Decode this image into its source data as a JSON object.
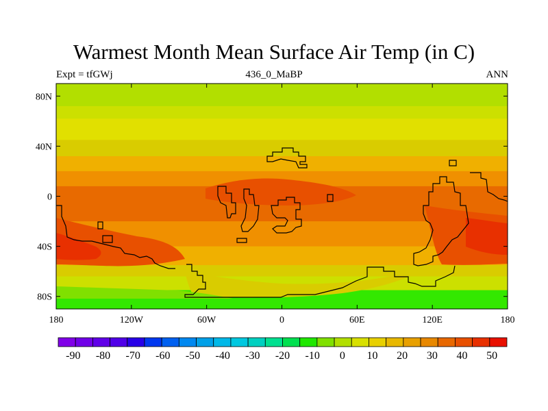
{
  "title": "Warmest Month Mean Surface Air Temp (in C)",
  "subtitle_left": "Expt = tfGWj",
  "subtitle_center": "436_0_MaBP",
  "subtitle_right": "ANN",
  "map": {
    "lat_range": [
      -90,
      90
    ],
    "lon_range": [
      -180,
      180
    ],
    "y_ticks": [
      "80N",
      "40N",
      "0",
      "40S",
      "80S"
    ],
    "y_tick_values": [
      80,
      40,
      0,
      -40,
      -80
    ],
    "x_ticks": [
      "180",
      "120W",
      "60W",
      "0",
      "60E",
      "120E",
      "180"
    ],
    "x_tick_values": [
      -180,
      -120,
      -60,
      0,
      60,
      120,
      180
    ],
    "lat_bands": [
      {
        "lat_top": 90,
        "lat_bottom": 72,
        "color": "#b2df00"
      },
      {
        "lat_top": 72,
        "lat_bottom": 62,
        "color": "#cce000"
      },
      {
        "lat_top": 62,
        "lat_bottom": 45,
        "color": "#e1e000"
      },
      {
        "lat_top": 45,
        "lat_bottom": 32,
        "color": "#d9cc00"
      },
      {
        "lat_top": 32,
        "lat_bottom": 20,
        "color": "#f0b000"
      },
      {
        "lat_top": 20,
        "lat_bottom": 8,
        "color": "#f09000"
      },
      {
        "lat_top": 8,
        "lat_bottom": -20,
        "color": "#e86a00"
      },
      {
        "lat_top": -20,
        "lat_bottom": -40,
        "color": "#f09000"
      },
      {
        "lat_top": -40,
        "lat_bottom": -55,
        "color": "#f0b000"
      },
      {
        "lat_top": -55,
        "lat_bottom": -64,
        "color": "#d9cc00"
      },
      {
        "lat_top": -64,
        "lat_bottom": -75,
        "color": "#cce000"
      },
      {
        "lat_top": -75,
        "lat_bottom": -90,
        "color": "#33e800"
      }
    ]
  },
  "colorbar": {
    "colors": [
      "#8000e8",
      "#7000e8",
      "#6000e8",
      "#5000e8",
      "#2800e8",
      "#0038f0",
      "#0060f0",
      "#0088f0",
      "#00a0e8",
      "#00b8e8",
      "#00c8e0",
      "#00d0c0",
      "#00e090",
      "#00e050",
      "#20e800",
      "#80e000",
      "#b2df00",
      "#d8e000",
      "#e8d000",
      "#e8b800",
      "#e8a000",
      "#e88800",
      "#e86800",
      "#e85000",
      "#e83000",
      "#e81000"
    ],
    "labels": [
      "-90",
      "-80",
      "-70",
      "-60",
      "-50",
      "-40",
      "-30",
      "-20",
      "-10",
      "0",
      "10",
      "20",
      "30",
      "40",
      "50"
    ],
    "label_values": [
      -90,
      -80,
      -70,
      -60,
      -50,
      -40,
      -30,
      -20,
      -10,
      0,
      10,
      20,
      30,
      40,
      50
    ],
    "min": -95,
    "max": 55
  }
}
